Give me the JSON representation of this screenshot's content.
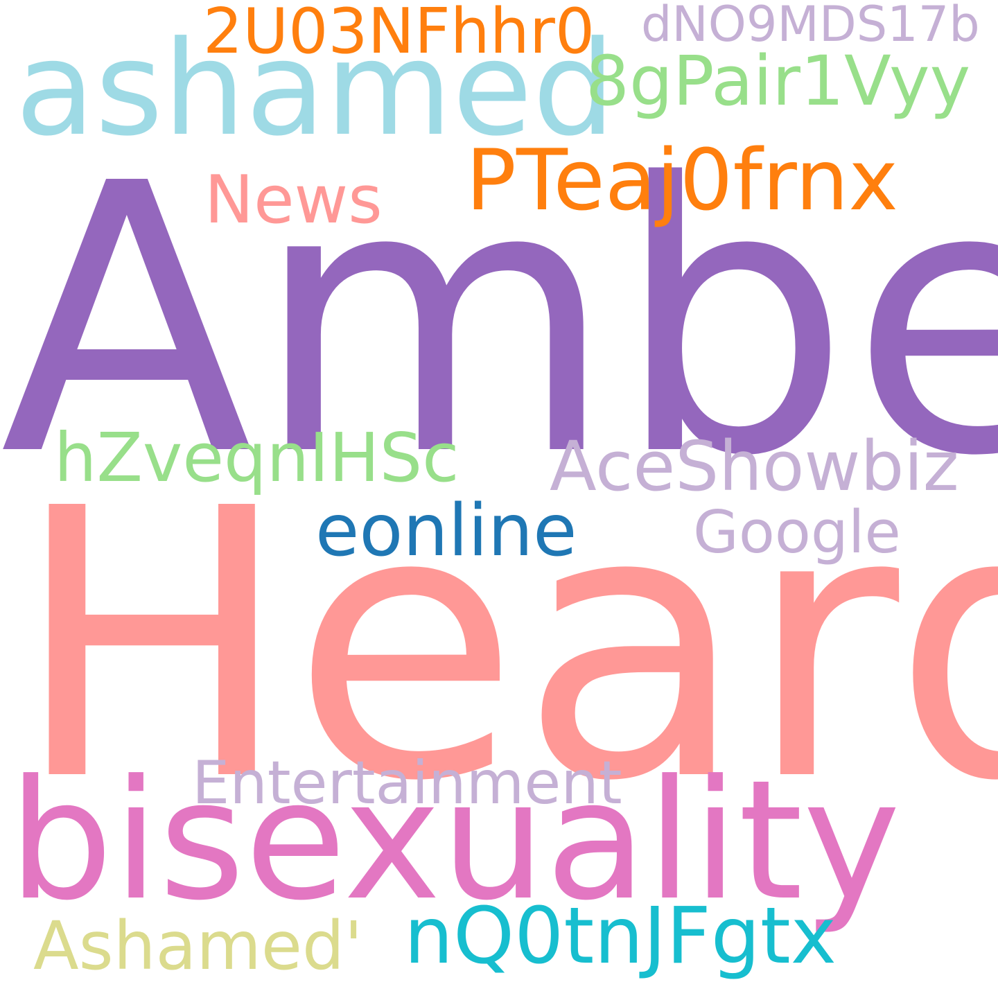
{
  "words": [
    {
      "text": "Amber",
      "color": "#9467bd"
    },
    {
      "text": "Heard",
      "color": "#ff9896"
    },
    {
      "text": "bisexuality",
      "color": "#e377c2"
    },
    {
      "text": "ashamed",
      "color": "#9edae5"
    },
    {
      "text": "PTeaj0frnx",
      "color": "#ff7f0e"
    },
    {
      "text": "2U03NFhhr0",
      "color": "#ff7f0e"
    },
    {
      "text": "8gPair1Vyy",
      "color": "#98df8a"
    },
    {
      "text": "dNO9MDS17b",
      "color": "#c5b0d5"
    },
    {
      "text": "News",
      "color": "#ff9896"
    },
    {
      "text": "hZveqnIHSc",
      "color": "#98df8a"
    },
    {
      "text": "AceShowbiz",
      "color": "#c5b0d5"
    },
    {
      "text": "eonline",
      "color": "#1f77b4"
    },
    {
      "text": "Google",
      "color": "#c5b0d5"
    },
    {
      "text": "Entertainment",
      "color": "#c5b0d5"
    },
    {
      "text": "nQ0tnJFgtx",
      "color": "#17becf"
    },
    {
      "text": "Ashamed'",
      "color": "#dbdb8d"
    }
  ]
}
